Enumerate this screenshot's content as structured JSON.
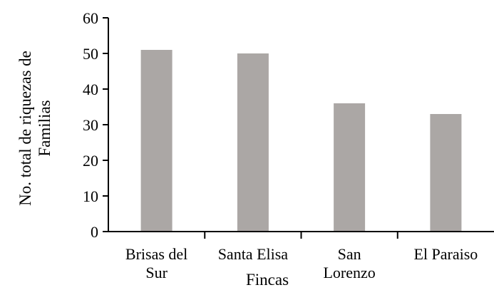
{
  "chart_data": {
    "type": "bar",
    "categories": [
      [
        "Brisas del",
        "Sur"
      ],
      [
        "Santa Elisa"
      ],
      [
        "San",
        "Lorenzo"
      ],
      [
        "El Paraiso"
      ]
    ],
    "values": [
      51,
      50,
      36,
      33
    ],
    "title": "",
    "xlabel": "Fincas",
    "ylabel": [
      "No. total de riquezas de",
      "Familias"
    ],
    "ylim": [
      0,
      60
    ],
    "yticks": [
      0,
      10,
      20,
      30,
      40,
      50,
      60
    ],
    "grid": false,
    "legend": "none",
    "bar_color": "#aba7a5",
    "axis_color": "#000000"
  }
}
